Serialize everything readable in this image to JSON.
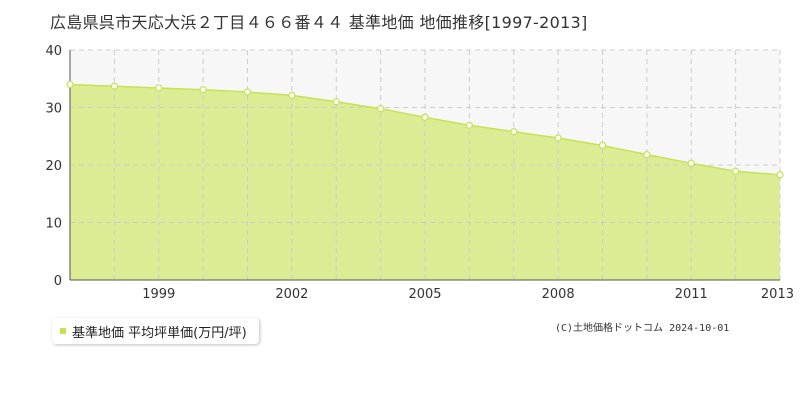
{
  "chart_data": {
    "type": "area",
    "title": "広島県呉市天応大浜２丁目４６６番４４ 基準地価 地価推移[1997-2013]",
    "x": [
      1997,
      1998,
      1999,
      2000,
      2001,
      2002,
      2003,
      2004,
      2005,
      2006,
      2007,
      2008,
      2009,
      2010,
      2011,
      2012,
      2013
    ],
    "x_tick_labels": [
      "1999",
      "2002",
      "2005",
      "2008",
      "2011",
      "2013"
    ],
    "x_tick_values": [
      1999,
      2002,
      2005,
      2008,
      2011,
      2013
    ],
    "xlim": [
      1997,
      2013
    ],
    "ylim": [
      0,
      40
    ],
    "y_ticks": [
      0,
      10,
      20,
      30,
      40
    ],
    "y_tick_labels": [
      "0",
      "10",
      "20",
      "30",
      "40"
    ],
    "grid": true,
    "series": [
      {
        "name": "基準地価 平均坪単価(万円/坪)",
        "values": [
          34.0,
          33.7,
          33.4,
          33.1,
          32.7,
          32.1,
          31.0,
          29.8,
          28.3,
          26.9,
          25.8,
          24.7,
          23.4,
          21.8,
          20.3,
          18.9,
          18.3
        ]
      }
    ],
    "legend": {
      "label": "基準地価 平均坪単価(万円/坪)",
      "position": "bottom-left"
    },
    "colors": {
      "fill": "#dcec94",
      "line": "#c6e252",
      "point_fill": "#ffffff",
      "grid": "#cccccc",
      "upper_band": "#f7f7f7"
    }
  },
  "copyright": "(C)土地価格ドットコム 2024-10-01"
}
